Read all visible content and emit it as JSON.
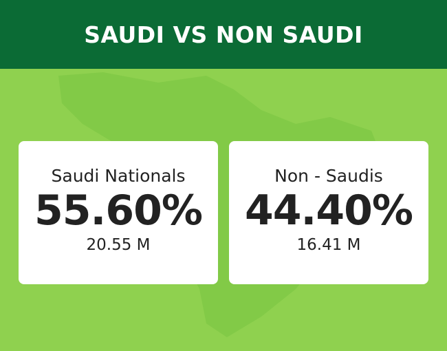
{
  "header": {
    "title": "SAUDI VS NON SAUDI"
  },
  "cards": [
    {
      "label": "Saudi Nationals",
      "percent": "55.60%",
      "count": "20.55 M"
    },
    {
      "label": "Non - Saudis",
      "percent": "44.40%",
      "count": "16.41 M"
    }
  ]
}
